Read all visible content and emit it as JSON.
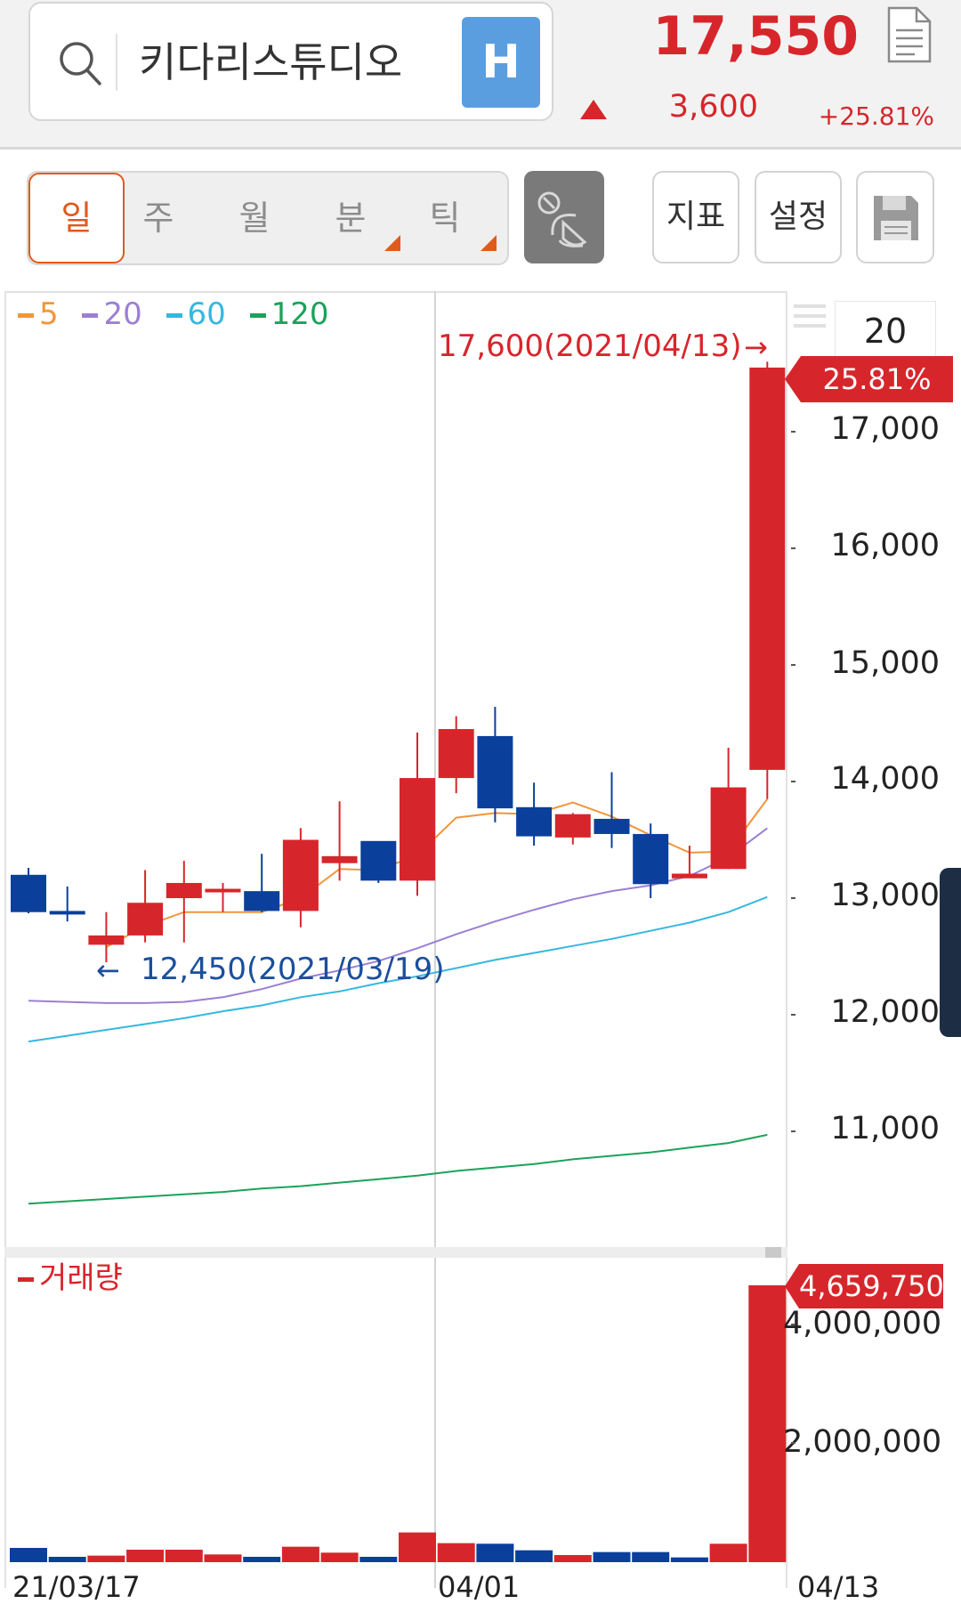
{
  "header": {
    "stock_name": "키다리스튜디오",
    "h_badge": "H",
    "price": "17,550",
    "change": "3,600",
    "change_pct": "+25.81%",
    "up_color": "#d7262b",
    "down_color": "#0b3f9c"
  },
  "toolbar": {
    "periods": [
      "일",
      "주",
      "월",
      "분",
      "틱"
    ],
    "active_period": "일",
    "indicator_label": "지표",
    "settings_label": "설정",
    "save_icon": "save-icon",
    "satellite_icon": "satellite-icon"
  },
  "legend": {
    "ma": [
      {
        "label": "5",
        "color": "#f0963c"
      },
      {
        "label": "20",
        "color": "#9b7fd4"
      },
      {
        "label": "60",
        "color": "#35b8e0"
      },
      {
        "label": "120",
        "color": "#1aa35a"
      }
    ],
    "volume_label": "거래량"
  },
  "annotations": {
    "high": "17,600(2021/04/13)",
    "high_arrow": "→",
    "low": "12,450(2021/03/19)",
    "low_arrow": "←"
  },
  "side": {
    "period_count": "20",
    "pct_tag": "25.81%",
    "volume_tag": "4,659,750"
  },
  "chart_data": {
    "type": "candlestick",
    "price_axis": {
      "ticks": [
        "17,000",
        "16,000",
        "15,000",
        "14,000",
        "13,000",
        "12,000",
        "11,000"
      ],
      "ylim": [
        10200,
        18250
      ]
    },
    "volume_axis": {
      "ticks": [
        "4,000,000",
        "2,000,000"
      ],
      "ylim": [
        0,
        5300000
      ]
    },
    "x_tick_labels": [
      "21/03/17",
      "04/01",
      "04/13"
    ],
    "candles": [
      {
        "o": 13200,
        "h": 13260,
        "l": 12870,
        "c": 12880
      },
      {
        "o": 12890,
        "h": 13100,
        "l": 12800,
        "c": 12880
      },
      {
        "o": 12600,
        "h": 12880,
        "l": 12450,
        "c": 12680
      },
      {
        "o": 12680,
        "h": 13240,
        "l": 12620,
        "c": 12960
      },
      {
        "o": 13000,
        "h": 13320,
        "l": 12620,
        "c": 13130
      },
      {
        "o": 13080,
        "h": 13130,
        "l": 12880,
        "c": 13080
      },
      {
        "o": 13060,
        "h": 13380,
        "l": 12880,
        "c": 12890
      },
      {
        "o": 12890,
        "h": 13600,
        "l": 12750,
        "c": 13500
      },
      {
        "o": 13300,
        "h": 13830,
        "l": 13150,
        "c": 13360
      },
      {
        "o": 13490,
        "h": 13470,
        "l": 13130,
        "c": 13150
      },
      {
        "o": 13150,
        "h": 14420,
        "l": 13020,
        "c": 14030
      },
      {
        "o": 14030,
        "h": 14560,
        "l": 13900,
        "c": 14450
      },
      {
        "o": 14390,
        "h": 14640,
        "l": 13650,
        "c": 13770
      },
      {
        "o": 13780,
        "h": 13990,
        "l": 13450,
        "c": 13530
      },
      {
        "o": 13520,
        "h": 13730,
        "l": 13460,
        "c": 13720
      },
      {
        "o": 13680,
        "h": 14080,
        "l": 13430,
        "c": 13550
      },
      {
        "o": 13550,
        "h": 13640,
        "l": 13000,
        "c": 13120
      },
      {
        "o": 13170,
        "h": 13450,
        "l": 13180,
        "c": 13210
      },
      {
        "o": 13250,
        "h": 14290,
        "l": 13250,
        "c": 13950
      },
      {
        "o": 14100,
        "h": 17600,
        "l": 13850,
        "c": 17550
      }
    ],
    "ma5": [
      null,
      null,
      12580,
      12760,
      12880,
      12880,
      12880,
      13000,
      13250,
      13240,
      13370,
      13690,
      13730,
      13720,
      13820,
      13700,
      13540,
      13390,
      13400,
      13850
    ],
    "ma20": [
      12120,
      12110,
      12100,
      12100,
      12110,
      12150,
      12220,
      12310,
      12380,
      12460,
      12570,
      12690,
      12800,
      12900,
      12990,
      13060,
      13110,
      13190,
      13350,
      13600
    ],
    "ma60": [
      11770,
      11820,
      11870,
      11920,
      11970,
      12030,
      12080,
      12150,
      12200,
      12270,
      12330,
      12400,
      12470,
      12530,
      12590,
      12650,
      12720,
      12790,
      12880,
      13010
    ],
    "ma120": [
      10380,
      10400,
      10420,
      10440,
      10460,
      10480,
      10510,
      10530,
      10560,
      10590,
      10620,
      10660,
      10690,
      10720,
      10760,
      10790,
      10820,
      10860,
      10900,
      10970
    ],
    "volume": [
      {
        "v": 240000,
        "up": false
      },
      {
        "v": 90000,
        "up": false
      },
      {
        "v": 110000,
        "up": true
      },
      {
        "v": 210000,
        "up": true
      },
      {
        "v": 210000,
        "up": true
      },
      {
        "v": 130000,
        "up": true
      },
      {
        "v": 90000,
        "up": false
      },
      {
        "v": 260000,
        "up": true
      },
      {
        "v": 160000,
        "up": true
      },
      {
        "v": 90000,
        "up": false
      },
      {
        "v": 500000,
        "up": true
      },
      {
        "v": 320000,
        "up": true
      },
      {
        "v": 310000,
        "up": false
      },
      {
        "v": 200000,
        "up": false
      },
      {
        "v": 120000,
        "up": true
      },
      {
        "v": 170000,
        "up": false
      },
      {
        "v": 170000,
        "up": false
      },
      {
        "v": 80000,
        "up": false
      },
      {
        "v": 310000,
        "up": true
      },
      {
        "v": 4659750,
        "up": true
      }
    ]
  }
}
